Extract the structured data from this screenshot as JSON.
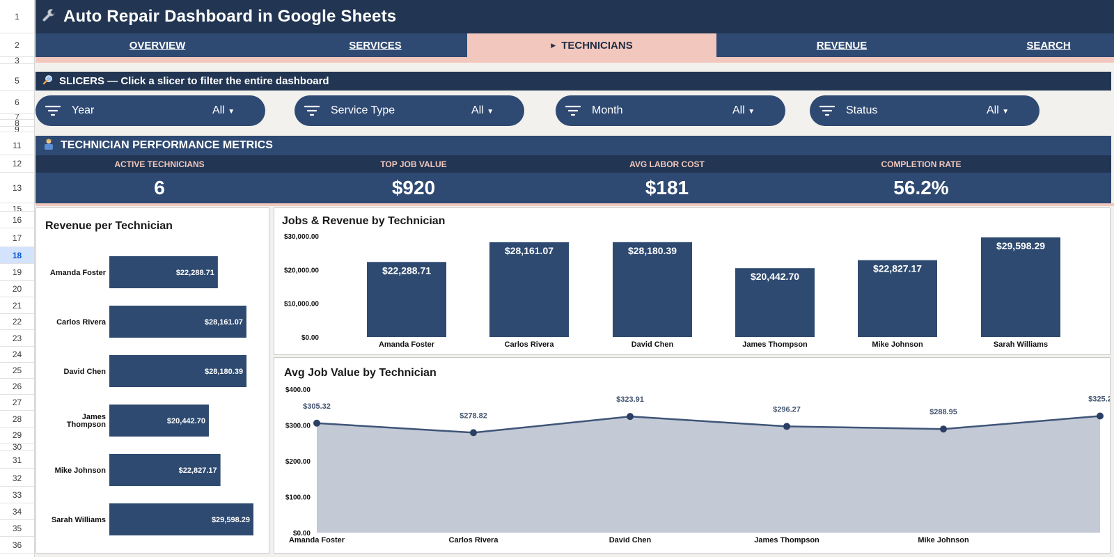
{
  "row_numbers": [
    {
      "n": "1",
      "top": 0,
      "h": 48
    },
    {
      "n": "2",
      "top": 48,
      "h": 34
    },
    {
      "n": "3",
      "top": 82,
      "h": 10
    },
    {
      "n": "5",
      "top": 103,
      "h": 27
    },
    {
      "n": "6",
      "top": 130,
      "h": 34
    },
    {
      "n": "7",
      "top": 164,
      "h": 8
    },
    {
      "n": "8",
      "top": 172,
      "h": 10
    },
    {
      "n": "9",
      "top": 182,
      "h": 8
    },
    {
      "n": "11",
      "top": 195,
      "h": 28
    },
    {
      "n": "12",
      "top": 223,
      "h": 25
    },
    {
      "n": "13",
      "top": 248,
      "h": 44
    },
    {
      "n": "15",
      "top": 296,
      "h": 8
    },
    {
      "n": "16",
      "top": 304,
      "h": 24
    },
    {
      "n": "17",
      "top": 330,
      "h": 24
    },
    {
      "n": "18",
      "top": 355,
      "h": 24,
      "sel": true
    },
    {
      "n": "19",
      "top": 379,
      "h": 24
    },
    {
      "n": "20",
      "top": 403,
      "h": 24
    },
    {
      "n": "21",
      "top": 427,
      "h": 24
    },
    {
      "n": "22",
      "top": 450,
      "h": 24
    },
    {
      "n": "23",
      "top": 474,
      "h": 24
    },
    {
      "n": "24",
      "top": 497,
      "h": 24
    },
    {
      "n": "25",
      "top": 520,
      "h": 24
    },
    {
      "n": "26",
      "top": 543,
      "h": 24
    },
    {
      "n": "27",
      "top": 566,
      "h": 24
    },
    {
      "n": "28",
      "top": 590,
      "h": 24
    },
    {
      "n": "29",
      "top": 613,
      "h": 24
    },
    {
      "n": "30",
      "top": 637,
      "h": 10
    },
    {
      "n": "31",
      "top": 649,
      "h": 24
    },
    {
      "n": "32",
      "top": 675,
      "h": 24
    },
    {
      "n": "33",
      "top": 699,
      "h": 24
    },
    {
      "n": "34",
      "top": 723,
      "h": 24
    },
    {
      "n": "35",
      "top": 747,
      "h": 24
    },
    {
      "n": "36",
      "top": 771,
      "h": 24
    }
  ],
  "header": {
    "title": "Auto Repair Dashboard in Google Sheets",
    "icon": "wrench-icon"
  },
  "tabs": [
    {
      "label": "OVERVIEW",
      "active": false
    },
    {
      "label": "SERVICES",
      "active": false
    },
    {
      "label": "TECHNICIANS",
      "active": true
    },
    {
      "label": "REVENUE",
      "active": false
    },
    {
      "label": "SEARCH",
      "active": false
    }
  ],
  "slicers": {
    "heading": "SLICERS — Click a slicer to filter the entire dashboard",
    "items": [
      {
        "label": "Year",
        "value": "All"
      },
      {
        "label": "Service Type",
        "value": "All"
      },
      {
        "label": "Month",
        "value": "All"
      },
      {
        "label": "Status",
        "value": "All"
      }
    ]
  },
  "metrics": {
    "heading": "TECHNICIAN PERFORMANCE METRICS",
    "kpis": [
      {
        "label": "ACTIVE TECHNICIANS",
        "value": "6"
      },
      {
        "label": "TOP JOB VALUE",
        "value": "$920"
      },
      {
        "label": "AVG LABOR COST",
        "value": "$181"
      },
      {
        "label": "COMPLETION RATE",
        "value": "56.2%"
      }
    ]
  },
  "colors": {
    "navy_dark": "#223552",
    "navy": "#2f4a72",
    "pink": "#f2c7bd",
    "bar": "#2e4a70",
    "area_fill": "#c3c9d5",
    "line": "#3f5578"
  },
  "chart_data": [
    {
      "type": "bar",
      "orientation": "horizontal",
      "title": "Revenue per Technician",
      "categories": [
        "Amanda Foster",
        "Carlos Rivera",
        "David Chen",
        "James Thompson",
        "Mike Johnson",
        "Sarah Williams"
      ],
      "values": [
        22288.71,
        28161.07,
        28180.39,
        20442.7,
        22827.17,
        29598.29
      ],
      "labels": [
        "$22,288.71",
        "$28,161.07",
        "$28,180.39",
        "$20,442.70",
        "$22,827.17",
        "$29,598.29"
      ]
    },
    {
      "type": "bar",
      "title": "Jobs & Revenue by Technician",
      "categories": [
        "Amanda Foster",
        "Carlos Rivera",
        "David Chen",
        "James Thompson",
        "Mike Johnson",
        "Sarah Williams"
      ],
      "values": [
        22288.71,
        28161.07,
        28180.39,
        20442.7,
        22827.17,
        29598.29
      ],
      "labels": [
        "$22,288.71",
        "$28,161.07",
        "$28,180.39",
        "$20,442.70",
        "$22,827.17",
        "$29,598.29"
      ],
      "yticks": [
        "$0.00",
        "$10,000.00",
        "$20,000.00",
        "$30,000.00"
      ],
      "ylim": [
        0,
        30000
      ]
    },
    {
      "type": "area",
      "title": "Avg Job Value by Technician",
      "categories": [
        "Amanda Foster",
        "Carlos Rivera",
        "David Chen",
        "James Thompson",
        "Mike Johnson",
        "Sarah Williams"
      ],
      "x_labels_shown": [
        "Amanda Foster",
        "Carlos Rivera",
        "David Chen",
        "James Thompson",
        "Mike Johnson"
      ],
      "values": [
        305.32,
        278.82,
        323.91,
        296.27,
        288.95,
        325.2
      ],
      "labels": [
        "$305.32",
        "$278.82",
        "$323.91",
        "$296.27",
        "$288.95",
        "$325.2"
      ],
      "yticks": [
        "$0.00",
        "$100.00",
        "$200.00",
        "$300.00",
        "$400.00"
      ],
      "ylim": [
        0,
        400
      ]
    }
  ]
}
